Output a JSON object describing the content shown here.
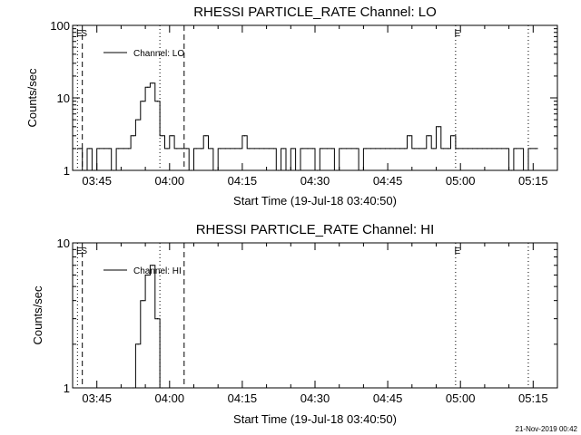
{
  "colors": {
    "background": "#ffffff",
    "foreground": "#000000"
  },
  "footer": {
    "timestamp": "21-Nov-2019 00:42"
  },
  "chart_data": [
    {
      "type": "line",
      "title": "RHESSI PARTICLE_RATE Channel: LO",
      "xlabel": "Start Time (19-Jul-18 03:40:50)",
      "ylabel": "Counts/sec",
      "y_scale": "log",
      "ylim": [
        1,
        100
      ],
      "y_ticks": [
        1,
        10,
        100
      ],
      "y_tick_labels": [
        "1",
        "10",
        "100"
      ],
      "xlim": [
        "03:40",
        "05:20"
      ],
      "x_ticks": [
        "03:45",
        "04:00",
        "04:15",
        "04:30",
        "04:45",
        "05:00",
        "05:15"
      ],
      "legend": {
        "entries": [
          "Channel: LO"
        ],
        "placement": "top-left"
      },
      "markers": [
        {
          "label": "E",
          "time": "03:41",
          "style": "dotted"
        },
        {
          "label": "S",
          "time": "03:42",
          "style": "dashed"
        },
        {
          "label": "",
          "time": "03:58",
          "style": "dotted"
        },
        {
          "label": "",
          "time": "04:03",
          "style": "dashed"
        },
        {
          "label": "E",
          "time": "04:59",
          "style": "dotted"
        },
        {
          "label": "",
          "time": "05:14",
          "style": "dotted"
        }
      ],
      "series": [
        {
          "name": "Channel: LO",
          "x": [
            "03:41",
            "03:42",
            "03:43",
            "03:44",
            "03:45",
            "03:46",
            "03:47",
            "03:48",
            "03:49",
            "03:50",
            "03:51",
            "03:52",
            "03:53",
            "03:54",
            "03:55",
            "03:56",
            "03:57",
            "03:58",
            "03:59",
            "04:00",
            "04:01",
            "04:02",
            "04:03",
            "04:04",
            "04:05",
            "04:06",
            "04:07",
            "04:08",
            "04:09",
            "04:10",
            "04:11",
            "04:12",
            "04:13",
            "04:14",
            "04:15",
            "04:16",
            "04:17",
            "04:18",
            "04:19",
            "04:20",
            "04:21",
            "04:22",
            "04:23",
            "04:24",
            "04:25",
            "04:26",
            "04:27",
            "04:28",
            "04:29",
            "04:30",
            "04:31",
            "04:32",
            "04:33",
            "04:34",
            "04:35",
            "04:36",
            "04:37",
            "04:38",
            "04:39",
            "04:40",
            "04:41",
            "04:42",
            "04:43",
            "04:44",
            "04:45",
            "04:46",
            "04:47",
            "04:48",
            "04:49",
            "04:50",
            "04:51",
            "04:52",
            "04:53",
            "04:54",
            "04:55",
            "04:56",
            "04:57",
            "04:58",
            "04:59",
            "05:00",
            "05:01",
            "05:02",
            "05:03",
            "05:04",
            "05:05",
            "05:06",
            "05:07",
            "05:08",
            "05:09",
            "05:10",
            "05:11",
            "05:12",
            "05:13",
            "05:14",
            "05:15"
          ],
          "values": [
            2,
            1,
            2,
            1,
            2,
            2,
            2,
            1,
            2,
            2,
            2,
            3,
            5,
            9,
            14,
            16,
            9,
            3,
            2,
            3,
            2,
            2,
            2,
            1,
            2,
            2,
            3,
            2,
            1,
            2,
            2,
            2,
            2,
            2,
            3,
            2,
            2,
            2,
            2,
            2,
            2,
            1,
            2,
            1,
            2,
            1,
            2,
            2,
            2,
            1,
            2,
            2,
            2,
            1,
            2,
            2,
            2,
            2,
            1,
            2,
            2,
            2,
            2,
            2,
            2,
            2,
            2,
            2,
            3,
            2,
            2,
            2,
            3,
            2,
            4,
            2,
            2,
            3,
            2,
            2,
            2,
            2,
            2,
            2,
            2,
            2,
            2,
            2,
            2,
            1,
            2,
            2,
            1,
            2,
            2
          ]
        }
      ]
    },
    {
      "type": "line",
      "title": "RHESSI PARTICLE_RATE Channel: HI",
      "xlabel": "Start Time (19-Jul-18 03:40:50)",
      "ylabel": "Counts/sec",
      "y_scale": "log",
      "ylim": [
        1,
        10
      ],
      "y_ticks": [
        1,
        10
      ],
      "y_tick_labels": [
        "1",
        "10"
      ],
      "xlim": [
        "03:40",
        "05:20"
      ],
      "x_ticks": [
        "03:45",
        "04:00",
        "04:15",
        "04:30",
        "04:45",
        "05:00",
        "05:15"
      ],
      "legend": {
        "entries": [
          "Channel: HI"
        ],
        "placement": "top-left"
      },
      "markers": [
        {
          "label": "E",
          "time": "03:41",
          "style": "dotted"
        },
        {
          "label": "S",
          "time": "03:42",
          "style": "dashed"
        },
        {
          "label": "",
          "time": "03:58",
          "style": "dotted"
        },
        {
          "label": "",
          "time": "04:03",
          "style": "dashed"
        },
        {
          "label": "E",
          "time": "04:59",
          "style": "dotted"
        },
        {
          "label": "",
          "time": "05:14",
          "style": "dotted"
        }
      ],
      "series": [
        {
          "name": "Channel: HI",
          "x": [
            "03:52",
            "03:53",
            "03:54",
            "03:55",
            "03:56",
            "03:57",
            "03:58"
          ],
          "values": [
            1,
            2,
            4,
            6,
            7,
            3,
            1
          ]
        }
      ]
    }
  ]
}
